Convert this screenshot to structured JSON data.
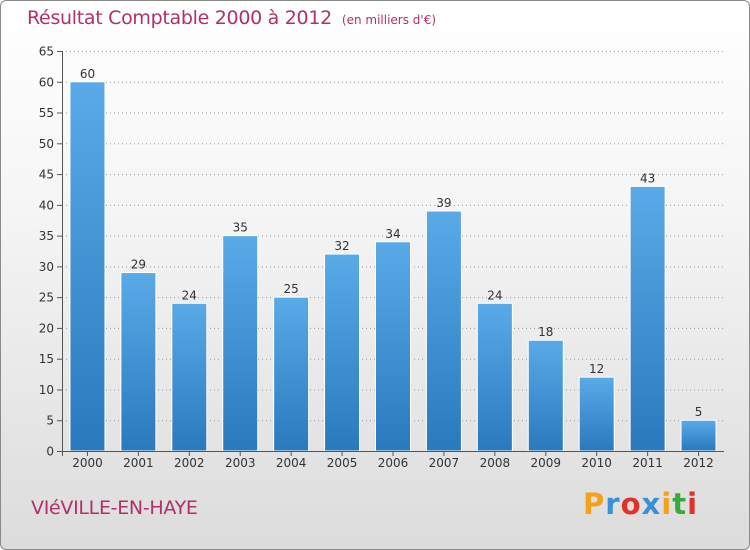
{
  "title": "Résultat Comptable 2000 à 2012",
  "unit_note": "(en milliers d'€)",
  "commune": "VIéVILLE-EN-HAYE",
  "brand": {
    "letters": [
      "P",
      "r",
      "o",
      "x",
      "i",
      "t",
      "i"
    ],
    "colors": [
      "#f3a21a",
      "#3a8fd6",
      "#e2302b",
      "#3a8fd6",
      "#f3a21a",
      "#3aa93a",
      "#e2302b"
    ]
  },
  "colors": {
    "title": "#b0306a",
    "bar_top": "#5aaae8",
    "bar_bottom": "#2a79bd",
    "axis": "#555555",
    "grid": "#9a9a9a"
  },
  "chart_data": {
    "type": "bar",
    "title": "Résultat Comptable 2000 à 2012",
    "ylabel": "en milliers d'€",
    "xlabel": "",
    "categories": [
      "2000",
      "2001",
      "2002",
      "2003",
      "2004",
      "2005",
      "2006",
      "2007",
      "2008",
      "2009",
      "2010",
      "2011",
      "2012"
    ],
    "values": [
      60,
      29,
      24,
      35,
      25,
      32,
      34,
      39,
      24,
      18,
      12,
      43,
      5
    ],
    "ylim": [
      0,
      65
    ],
    "ytick_step": 5,
    "grid": true,
    "data_labels": true
  }
}
